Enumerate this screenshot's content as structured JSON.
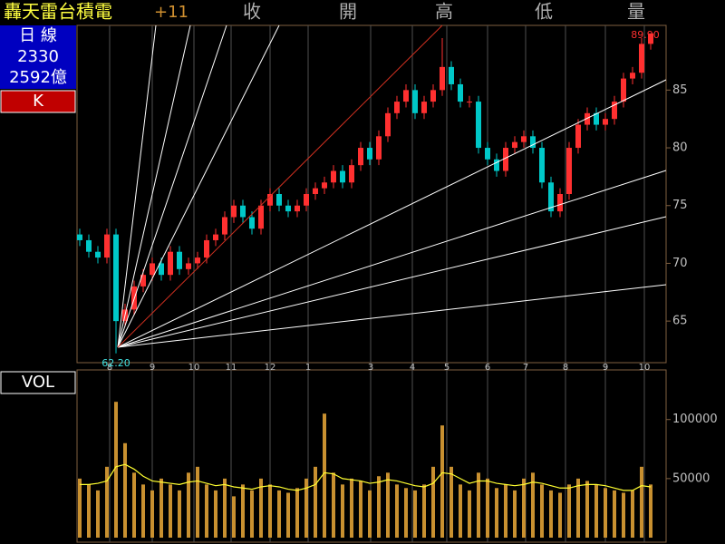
{
  "header": {
    "name": "轟天雷台積電",
    "change": "+11",
    "cols": [
      "收",
      "開",
      "高",
      "低",
      "量"
    ],
    "period": "日 線",
    "code": "2330",
    "amount": "2592億",
    "mode": "K",
    "panel2": "VOL"
  },
  "chart_data": [
    {
      "type": "candlestick",
      "up_color": "#ff3030",
      "down_color": "#00c8c8",
      "open": [
        72.5,
        72,
        71,
        70.5,
        72.5,
        65,
        66,
        68,
        69,
        70,
        69,
        71,
        69.5,
        70,
        70.5,
        72,
        72.5,
        74,
        75,
        74,
        73,
        75,
        76,
        75,
        74.5,
        75,
        76,
        76.5,
        77,
        78,
        77,
        78.5,
        80,
        79,
        81,
        83,
        84,
        85,
        83,
        84,
        85,
        87,
        85.5,
        84,
        84,
        80,
        79,
        78,
        80,
        80.5,
        81,
        80,
        77,
        74.5,
        76,
        80,
        82,
        83,
        82,
        82.5,
        84,
        86,
        86.5,
        89
      ],
      "high": [
        73,
        72.5,
        71.5,
        73,
        73,
        66.5,
        68.5,
        69.5,
        70.5,
        70.5,
        71.5,
        71.5,
        70.5,
        71,
        72.5,
        73,
        74.5,
        75.5,
        75.5,
        74.5,
        75.5,
        76.5,
        76.5,
        75.5,
        75.5,
        76.5,
        77,
        77.5,
        78.5,
        78.5,
        79,
        80.5,
        80.5,
        81.5,
        83.5,
        84.5,
        85.5,
        85.5,
        84.5,
        85.5,
        89.5,
        87.5,
        86,
        84.5,
        84.5,
        80.5,
        79.5,
        80.5,
        81,
        81.5,
        81.5,
        80.5,
        77.5,
        76.5,
        80.5,
        82.5,
        83.5,
        83.5,
        83,
        84.5,
        86.5,
        87,
        89.5,
        89.9
      ],
      "low": [
        71.5,
        70.5,
        70,
        70,
        62.2,
        64.5,
        65.5,
        67.5,
        68.5,
        68.5,
        68.5,
        69,
        69,
        69.5,
        70,
        71.5,
        72,
        73.5,
        73.5,
        72.5,
        72.5,
        74.5,
        74.5,
        74,
        74,
        74.5,
        75.5,
        76,
        76.5,
        76.5,
        76.5,
        78,
        78.5,
        78.5,
        80.5,
        82.5,
        83.5,
        82.5,
        82.5,
        83.5,
        84.5,
        85,
        83.5,
        83.5,
        79.5,
        78.5,
        77.5,
        77.5,
        79.5,
        80,
        79.5,
        76.5,
        74,
        74,
        75.5,
        79.5,
        81.5,
        81.5,
        81.5,
        82,
        83.5,
        85.5,
        86,
        88.5
      ],
      "close": [
        72,
        71,
        70.5,
        72.5,
        65,
        66,
        68,
        69,
        70,
        69,
        71,
        69.5,
        70,
        70.5,
        72,
        72.5,
        74,
        75,
        74,
        73,
        75,
        76,
        75,
        74.5,
        75,
        76,
        76.5,
        77,
        78,
        77,
        78.5,
        80,
        79,
        81,
        83,
        84,
        85,
        83,
        84,
        85,
        87,
        85.5,
        84,
        84,
        80,
        79,
        78,
        80,
        80.5,
        81,
        80,
        77,
        74.5,
        76,
        80,
        82,
        83,
        82,
        82.5,
        84,
        86,
        86.5,
        89,
        89.9
      ],
      "extreme_labels": {
        "low": "62.20",
        "high": "89.90"
      },
      "xlim": [
        -0.3,
        64.7
      ],
      "ylim": [
        61.4,
        90.6
      ],
      "yticks": [
        65,
        70,
        75,
        80,
        85
      ],
      "xticks": [
        {
          "value": 3.3,
          "label": "8"
        },
        {
          "value": 8,
          "label": "9"
        },
        {
          "value": 12.6,
          "label": "10"
        },
        {
          "value": 16.7,
          "label": "11"
        },
        {
          "value": 21,
          "label": "12"
        },
        {
          "value": 25.2,
          "label": "1"
        },
        {
          "value": 32.1,
          "label": "3"
        },
        {
          "value": 36.7,
          "label": "4"
        },
        {
          "value": 40.5,
          "label": "5"
        },
        {
          "value": 45,
          "label": "6"
        },
        {
          "value": 49.2,
          "label": "7"
        },
        {
          "value": 53.6,
          "label": "8"
        },
        {
          "value": 58,
          "label": "9"
        },
        {
          "value": 62.3,
          "label": "10"
        }
      ]
    },
    {
      "type": "volume",
      "color": "#c89030",
      "ma_color": "#ffff30",
      "values": [
        50000,
        45000,
        40000,
        60000,
        115000,
        80000,
        55000,
        45000,
        40000,
        50000,
        45000,
        40000,
        55000,
        60000,
        45000,
        40000,
        50000,
        35000,
        45000,
        40000,
        50000,
        45000,
        40000,
        38000,
        42000,
        50000,
        60000,
        105000,
        55000,
        45000,
        50000,
        48000,
        40000,
        52000,
        55000,
        45000,
        42000,
        40000,
        45000,
        60000,
        95000,
        60000,
        45000,
        40000,
        55000,
        50000,
        42000,
        45000,
        40000,
        50000,
        55000,
        45000,
        40000,
        38000,
        45000,
        50000,
        48000,
        45000,
        42000,
        40000,
        38000,
        40000,
        60000,
        45000
      ],
      "ma": [
        45000,
        45000,
        46000,
        48000,
        60000,
        62000,
        58000,
        52000,
        48000,
        47000,
        46000,
        45000,
        47000,
        48000,
        46000,
        44000,
        45000,
        43000,
        42000,
        41000,
        43000,
        44000,
        43000,
        41000,
        40000,
        42000,
        45000,
        55000,
        54000,
        50000,
        49000,
        48000,
        46000,
        47000,
        49000,
        48000,
        46000,
        44000,
        43000,
        46000,
        55000,
        54000,
        50000,
        46000,
        48000,
        48000,
        46000,
        45000,
        44000,
        45000,
        47000,
        46000,
        44000,
        42000,
        42000,
        44000,
        45000,
        45000,
        44000,
        42000,
        40000,
        40000,
        44000,
        43000
      ],
      "xlim": [
        -0.3,
        64.7
      ],
      "ylim": [
        0,
        142000
      ],
      "yticks": [
        50000,
        100000
      ]
    }
  ]
}
